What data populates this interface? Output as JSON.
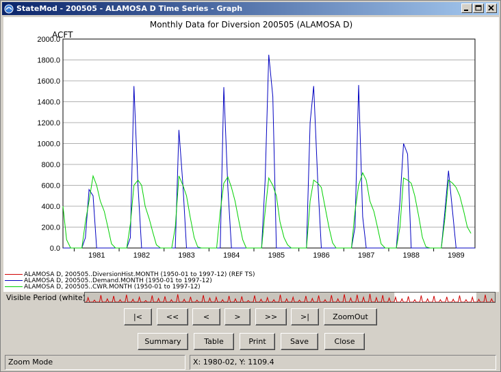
{
  "window": {
    "title": "StateMod - 200505 - ALAMOSA D Time Series - Graph",
    "controls": [
      "minimize",
      "maximize",
      "close"
    ]
  },
  "chart": {
    "title": "Monthly Data for Diversion 200505 (ALAMOSA D)",
    "y_unit": "ACFT"
  },
  "chart_data": {
    "type": "line",
    "title": "Monthly Data for Diversion 200505 (ALAMOSA D)",
    "ylabel": "ACFT",
    "ylim": [
      0,
      2000
    ],
    "y_ticks": [
      "0.0",
      "200.0",
      "400.0",
      "600.0",
      "800.0",
      "1000.0",
      "1200.0",
      "1400.0",
      "1600.0",
      "1800.0",
      "2000.0"
    ],
    "x_ticks": [
      "1981",
      "1982",
      "1983",
      "1984",
      "1985",
      "1986",
      "1987",
      "1988",
      "1989"
    ],
    "x_range": [
      1980.75,
      1989.92
    ],
    "series": [
      {
        "name": "ALAMOSA D, 200505..Demand.MONTH (1950-01 to 1997-12)",
        "color": "#0000c0",
        "points": [
          [
            1980.75,
            0
          ],
          [
            1981.17,
            0
          ],
          [
            1981.25,
            100
          ],
          [
            1981.33,
            560
          ],
          [
            1981.42,
            500
          ],
          [
            1981.5,
            0
          ],
          [
            1981.58,
            0
          ],
          [
            1982.17,
            0
          ],
          [
            1982.25,
            100
          ],
          [
            1982.33,
            1550
          ],
          [
            1982.42,
            600
          ],
          [
            1982.5,
            0
          ],
          [
            1982.58,
            0
          ],
          [
            1983.17,
            0
          ],
          [
            1983.25,
            0
          ],
          [
            1983.33,
            1130
          ],
          [
            1983.42,
            600
          ],
          [
            1983.5,
            0
          ],
          [
            1983.58,
            0
          ],
          [
            1984.17,
            0
          ],
          [
            1984.25,
            0
          ],
          [
            1984.33,
            1540
          ],
          [
            1984.42,
            580
          ],
          [
            1984.5,
            0
          ],
          [
            1984.58,
            0
          ],
          [
            1985.17,
            0
          ],
          [
            1985.25,
            650
          ],
          [
            1985.33,
            1850
          ],
          [
            1985.42,
            1450
          ],
          [
            1985.5,
            0
          ],
          [
            1985.58,
            0
          ],
          [
            1986.17,
            0
          ],
          [
            1986.25,
            1200
          ],
          [
            1986.33,
            1550
          ],
          [
            1986.42,
            650
          ],
          [
            1986.5,
            0
          ],
          [
            1986.58,
            0
          ],
          [
            1987.17,
            0
          ],
          [
            1987.25,
            200
          ],
          [
            1987.33,
            1560
          ],
          [
            1987.42,
            300
          ],
          [
            1987.5,
            0
          ],
          [
            1987.58,
            0
          ],
          [
            1988.17,
            0
          ],
          [
            1988.25,
            450
          ],
          [
            1988.33,
            1000
          ],
          [
            1988.42,
            900
          ],
          [
            1988.5,
            0
          ],
          [
            1988.58,
            0
          ],
          [
            1989.17,
            0
          ],
          [
            1989.25,
            350
          ],
          [
            1989.33,
            740
          ],
          [
            1989.42,
            350
          ],
          [
            1989.5,
            0
          ],
          [
            1989.92,
            0
          ]
        ]
      },
      {
        "name": "ALAMOSA D, 200505..CWR.MONTH (1950-01 to 1997-12)",
        "color": "#00d000",
        "points": [
          [
            1980.75,
            400
          ],
          [
            1980.83,
            80
          ],
          [
            1980.92,
            0
          ],
          [
            1981.17,
            0
          ],
          [
            1981.25,
            250
          ],
          [
            1981.33,
            450
          ],
          [
            1981.42,
            690
          ],
          [
            1981.5,
            600
          ],
          [
            1981.58,
            450
          ],
          [
            1981.67,
            350
          ],
          [
            1981.75,
            200
          ],
          [
            1981.83,
            40
          ],
          [
            1981.92,
            0
          ],
          [
            1982.17,
            0
          ],
          [
            1982.25,
            230
          ],
          [
            1982.33,
            600
          ],
          [
            1982.42,
            650
          ],
          [
            1982.5,
            600
          ],
          [
            1982.58,
            400
          ],
          [
            1982.67,
            280
          ],
          [
            1982.75,
            150
          ],
          [
            1982.83,
            30
          ],
          [
            1982.92,
            0
          ],
          [
            1983.17,
            0
          ],
          [
            1983.25,
            200
          ],
          [
            1983.33,
            690
          ],
          [
            1983.42,
            600
          ],
          [
            1983.5,
            500
          ],
          [
            1983.58,
            300
          ],
          [
            1983.67,
            100
          ],
          [
            1983.75,
            10
          ],
          [
            1983.83,
            0
          ],
          [
            1984.17,
            0
          ],
          [
            1984.25,
            350
          ],
          [
            1984.33,
            620
          ],
          [
            1984.42,
            680
          ],
          [
            1984.5,
            580
          ],
          [
            1984.58,
            450
          ],
          [
            1984.67,
            250
          ],
          [
            1984.75,
            80
          ],
          [
            1984.83,
            0
          ],
          [
            1985.17,
            0
          ],
          [
            1985.25,
            350
          ],
          [
            1985.33,
            670
          ],
          [
            1985.42,
            600
          ],
          [
            1985.5,
            500
          ],
          [
            1985.58,
            250
          ],
          [
            1985.67,
            100
          ],
          [
            1985.75,
            30
          ],
          [
            1985.83,
            0
          ],
          [
            1986.17,
            0
          ],
          [
            1986.25,
            450
          ],
          [
            1986.33,
            650
          ],
          [
            1986.42,
            620
          ],
          [
            1986.5,
            580
          ],
          [
            1986.58,
            400
          ],
          [
            1986.67,
            200
          ],
          [
            1986.75,
            50
          ],
          [
            1986.83,
            0
          ],
          [
            1987.17,
            0
          ],
          [
            1987.25,
            350
          ],
          [
            1987.33,
            600
          ],
          [
            1987.42,
            720
          ],
          [
            1987.5,
            650
          ],
          [
            1987.58,
            450
          ],
          [
            1987.67,
            350
          ],
          [
            1987.75,
            200
          ],
          [
            1987.83,
            40
          ],
          [
            1987.92,
            0
          ],
          [
            1988.17,
            0
          ],
          [
            1988.25,
            200
          ],
          [
            1988.33,
            670
          ],
          [
            1988.42,
            650
          ],
          [
            1988.5,
            620
          ],
          [
            1988.58,
            500
          ],
          [
            1988.67,
            300
          ],
          [
            1988.75,
            100
          ],
          [
            1988.83,
            10
          ],
          [
            1988.92,
            0
          ],
          [
            1989.17,
            0
          ],
          [
            1989.25,
            280
          ],
          [
            1989.33,
            650
          ],
          [
            1989.42,
            620
          ],
          [
            1989.5,
            580
          ],
          [
            1989.58,
            500
          ],
          [
            1989.67,
            350
          ],
          [
            1989.75,
            200
          ],
          [
            1989.83,
            140
          ]
        ]
      }
    ]
  },
  "legend": [
    {
      "label": "ALAMOSA D, 200505..DiversionHist.MONTH (1950-01 to 1997-12) (REF TS)",
      "color": "#d00000"
    },
    {
      "label": "ALAMOSA D, 200505..Demand.MONTH (1950-01 to 1997-12)",
      "color": "#0000c0"
    },
    {
      "label": "ALAMOSA D, 200505..CWR.MONTH (1950-01 to 1997-12)",
      "color": "#00d000"
    }
  ],
  "visible_period": {
    "label": "Visible Period (white):",
    "overview_peaks": [
      0.55,
      0.25,
      0.85,
      0.4,
      0.75,
      0.3,
      0.9,
      0.35,
      0.6,
      0.2,
      0.8,
      0.45,
      0.7,
      0.3,
      0.95,
      0.35,
      0.65,
      0.25,
      0.85,
      0.5,
      0.6,
      0.3,
      0.75,
      0.4,
      0.7,
      0.2,
      0.8,
      0.35,
      0.55,
      0.3,
      0.9,
      0.4,
      0.6,
      0.25,
      0.75,
      0.45,
      0.8,
      0.3,
      0.85,
      0.4,
      0.95,
      0.5,
      0.9,
      0.6,
      1.0,
      0.55,
      0.85,
      0.5,
      0.6,
      0.4,
      0.7,
      0.3,
      0.8,
      0.4,
      0.75,
      0.3,
      0.65,
      0.35,
      0.8,
      0.3,
      0.6,
      0.35,
      0.9,
      0.4
    ],
    "visible_start": 0.755,
    "visible_end": 0.955
  },
  "nav_buttons": [
    "|<",
    "<<",
    "<",
    ">",
    ">>",
    ">|",
    "ZoomOut"
  ],
  "action_buttons": [
    "Summary",
    "Table",
    "Print",
    "Save",
    "Close"
  ],
  "status": {
    "mode": "Zoom Mode",
    "coords": "X:  1980-02,  Y:  1109.4"
  }
}
